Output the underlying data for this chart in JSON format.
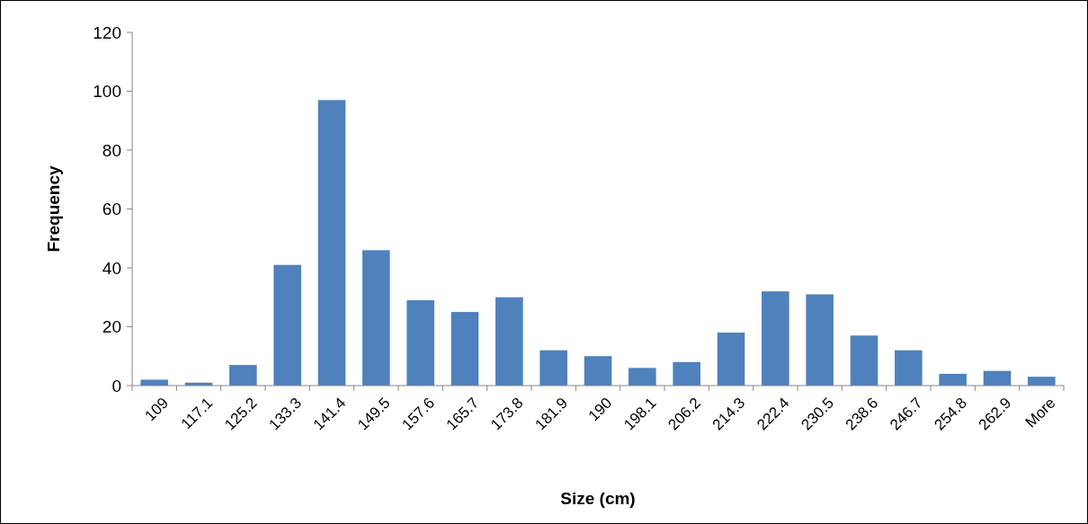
{
  "chart_data": {
    "type": "bar",
    "xlabel": "Size (cm)",
    "ylabel": "Frequency",
    "categories": [
      "109",
      "117.1",
      "125.2",
      "133.3",
      "141.4",
      "149.5",
      "157.6",
      "165.7",
      "173.8",
      "181.9",
      "190",
      "198.1",
      "206.2",
      "214.3",
      "222.4",
      "230.5",
      "238.6",
      "246.7",
      "254.8",
      "262.9",
      "More"
    ],
    "values": [
      2,
      1,
      7,
      41,
      97,
      46,
      29,
      25,
      30,
      12,
      10,
      6,
      8,
      18,
      32,
      31,
      17,
      12,
      4,
      5,
      3
    ],
    "color": "#4f81bd",
    "ylim": [
      0,
      120
    ],
    "yticks": [
      0,
      20,
      40,
      60,
      80,
      100,
      120
    ],
    "grid": false
  }
}
